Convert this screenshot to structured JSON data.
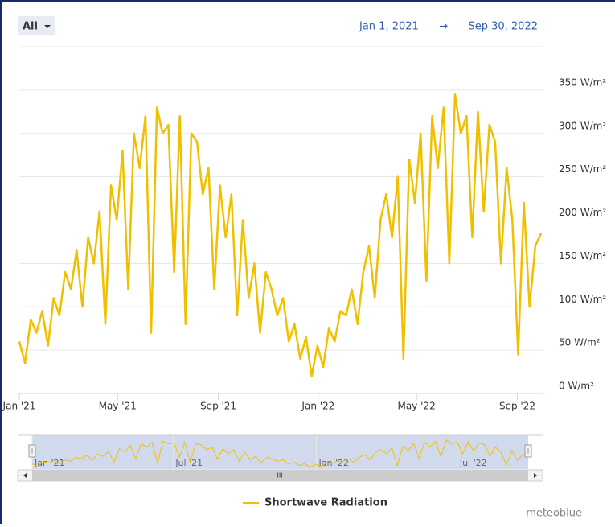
{
  "chart_data": {
    "type": "line",
    "range_selector": "All",
    "date_from": "Jan 1, 2021",
    "arrow": "→",
    "date_to": "Sep 30, 2022",
    "credits": "meteoblue",
    "grid": true,
    "xlim": [
      "2021-01-01",
      "2022-09-30"
    ],
    "xticks": [
      {
        "value": "2021-01-01",
        "label": "Jan '21"
      },
      {
        "value": "2021-05-01",
        "label": "May '21"
      },
      {
        "value": "2021-09-01",
        "label": "Sep '21"
      },
      {
        "value": "2022-01-01",
        "label": "Jan '22"
      },
      {
        "value": "2022-05-01",
        "label": "May '22"
      },
      {
        "value": "2022-09-01",
        "label": "Sep '22"
      }
    ],
    "navigator_xticks": [
      {
        "value": "2021-01-01",
        "label": "Jan '21"
      },
      {
        "value": "2021-07-01",
        "label": "Jul '21"
      },
      {
        "value": "2022-01-01",
        "label": "Jan '22"
      },
      {
        "value": "2022-07-01",
        "label": "Jul '22"
      }
    ],
    "ylim": [
      0,
      400
    ],
    "yticks": [
      {
        "value": 0,
        "label": "0 W/m²"
      },
      {
        "value": 50,
        "label": "50 W/m²"
      },
      {
        "value": 100,
        "label": "100 W/m²"
      },
      {
        "value": 150,
        "label": "150 W/m²"
      },
      {
        "value": 200,
        "label": "200 W/m²"
      },
      {
        "value": 250,
        "label": "250 W/m²"
      },
      {
        "value": 300,
        "label": "300 W/m²"
      },
      {
        "value": 350,
        "label": "350 W/m²"
      }
    ],
    "x": [
      "2021-01-01",
      "2021-01-08",
      "2021-01-15",
      "2021-01-22",
      "2021-01-29",
      "2021-02-05",
      "2021-02-12",
      "2021-02-19",
      "2021-02-26",
      "2021-03-05",
      "2021-03-12",
      "2021-03-19",
      "2021-03-26",
      "2021-04-02",
      "2021-04-09",
      "2021-04-16",
      "2021-04-23",
      "2021-04-30",
      "2021-05-07",
      "2021-05-14",
      "2021-05-21",
      "2021-05-28",
      "2021-06-04",
      "2021-06-11",
      "2021-06-18",
      "2021-06-25",
      "2021-07-02",
      "2021-07-09",
      "2021-07-16",
      "2021-07-23",
      "2021-07-30",
      "2021-08-06",
      "2021-08-13",
      "2021-08-20",
      "2021-08-27",
      "2021-09-03",
      "2021-09-10",
      "2021-09-17",
      "2021-09-24",
      "2021-10-01",
      "2021-10-08",
      "2021-10-15",
      "2021-10-22",
      "2021-10-29",
      "2021-11-05",
      "2021-11-12",
      "2021-11-19",
      "2021-11-26",
      "2021-12-03",
      "2021-12-10",
      "2021-12-17",
      "2021-12-24",
      "2021-12-31",
      "2022-01-07",
      "2022-01-14",
      "2022-01-21",
      "2022-01-28",
      "2022-02-04",
      "2022-02-11",
      "2022-02-18",
      "2022-02-25",
      "2022-03-04",
      "2022-03-11",
      "2022-03-18",
      "2022-03-25",
      "2022-04-01",
      "2022-04-08",
      "2022-04-15",
      "2022-04-22",
      "2022-04-29",
      "2022-05-06",
      "2022-05-13",
      "2022-05-20",
      "2022-05-27",
      "2022-06-03",
      "2022-06-10",
      "2022-06-17",
      "2022-06-24",
      "2022-07-01",
      "2022-07-08",
      "2022-07-15",
      "2022-07-22",
      "2022-07-29",
      "2022-08-05",
      "2022-08-12",
      "2022-08-19",
      "2022-08-26",
      "2022-09-02",
      "2022-09-09",
      "2022-09-16",
      "2022-09-23",
      "2022-09-30"
    ],
    "series": [
      {
        "name": "Shortwave Radiation",
        "color": "#f0c000",
        "values": [
          60,
          35,
          85,
          70,
          95,
          55,
          110,
          90,
          140,
          120,
          165,
          100,
          180,
          150,
          210,
          80,
          240,
          200,
          280,
          120,
          300,
          260,
          320,
          70,
          330,
          300,
          310,
          140,
          320,
          80,
          300,
          290,
          230,
          260,
          120,
          240,
          180,
          230,
          90,
          200,
          110,
          150,
          70,
          140,
          120,
          90,
          110,
          60,
          80,
          40,
          65,
          20,
          55,
          30,
          75,
          60,
          95,
          90,
          120,
          80,
          140,
          170,
          110,
          200,
          230,
          180,
          250,
          40,
          270,
          220,
          300,
          130,
          320,
          260,
          330,
          150,
          345,
          300,
          320,
          180,
          325,
          210,
          310,
          290,
          150,
          260,
          200,
          45,
          220,
          100,
          170,
          185
        ]
      }
    ]
  }
}
